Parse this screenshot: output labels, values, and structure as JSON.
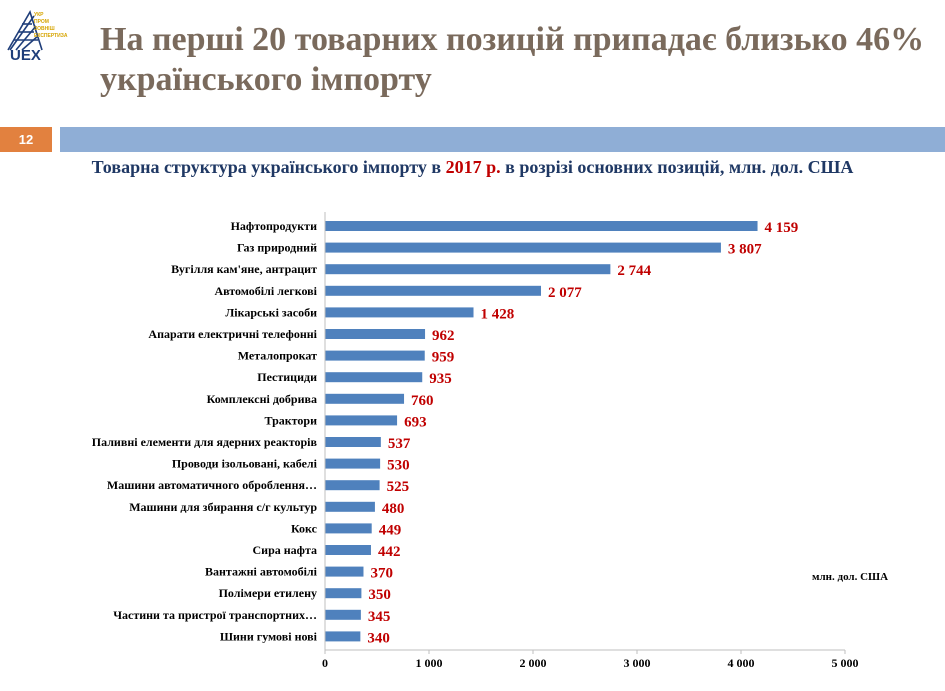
{
  "header": {
    "logo_text": "UEX",
    "logo_tagline": [
      "УКР",
      "ПРОМ",
      "ЗОВНІШ",
      "ЕКСПЕРТИЗА"
    ],
    "title": "На перші 20 товарних позицій припадає близько 46% українського імпорту",
    "page_number": "12"
  },
  "subtitle": {
    "before": "Товарна структура українського імпорту в ",
    "highlight": "2017 р.",
    "after": " в розрізі основних позицій, млн. дол. США"
  },
  "colors": {
    "bar": "#4f81bd",
    "value_label": "#c00000",
    "title": "#7a6a5c",
    "subtitle": "#1f3864",
    "accent_bar": "#8faed6",
    "page_badge": "#e2813f"
  },
  "chart_data": {
    "type": "bar",
    "orientation": "horizontal",
    "categories": [
      "Нафтопродукти",
      "Газ природний",
      "Вугілля кам'яне, антрацит",
      "Автомобілі легкові",
      "Лікарські засоби",
      "Апарати електричні телефонні",
      "Металопрокат",
      "Пестициди",
      "Комплексні добрива",
      "Трактори",
      "Паливні елементи для ядерних реакторів",
      "Проводи ізольовані, кабелі",
      "Машини автоматичного оброблення…",
      "Машини для збирання с/г культур",
      "Кокс",
      "Сира нафта",
      "Вантажні автомобілі",
      "Полімери етилену",
      "Частини та пристрої транспортних…",
      "Шини гумові нові"
    ],
    "values": [
      4159,
      3807,
      2744,
      2077,
      1428,
      962,
      959,
      935,
      760,
      693,
      537,
      530,
      525,
      480,
      449,
      442,
      370,
      350,
      345,
      340
    ],
    "value_labels": [
      "4 159",
      "3 807",
      "2 744",
      "2 077",
      "1 428",
      "962",
      "959",
      "935",
      "760",
      "693",
      "537",
      "530",
      "525",
      "480",
      "449",
      "442",
      "370",
      "350",
      "345",
      "340"
    ],
    "xlim": [
      0,
      5000
    ],
    "x_ticks": [
      0,
      1000,
      2000,
      3000,
      4000,
      5000
    ],
    "x_tick_labels": [
      "0",
      "1 000",
      "2 000",
      "3 000",
      "4 000",
      "5 000"
    ],
    "unit_note": "млн. дол. США",
    "grid": false,
    "legend": "none"
  }
}
